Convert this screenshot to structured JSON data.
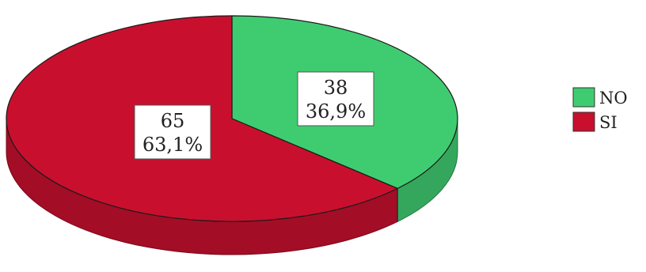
{
  "chart_data": {
    "type": "pie",
    "style": "3d",
    "slices": [
      {
        "label": "NO",
        "value": 38,
        "percent_label": "36,9%",
        "color": "#3fcc70"
      },
      {
        "label": "SI",
        "value": 65,
        "percent_label": "63,1%",
        "color": "#c8102e"
      }
    ],
    "legend": {
      "position": "right",
      "entries": [
        "NO",
        "SI"
      ]
    }
  }
}
